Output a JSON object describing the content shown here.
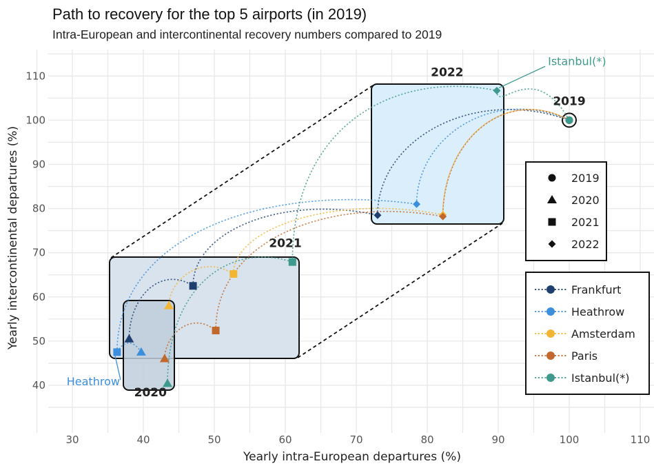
{
  "title": "Path to recovery for the top 5 airports (in 2019)",
  "subtitle": "Intra-European and intercontinental recovery numbers compared to 2019",
  "colors": {
    "Frankfurt": "#1f3f6e",
    "Heathrow": "#3c8fdc",
    "Amsterdam": "#f3b534",
    "Paris": "#c1692c",
    "Istanbul(*)": "#3e9a8c",
    "grid": "#e8e8e8",
    "box_2021_fill": "#d8e3ee",
    "box_2020_fill": "#bfcedb",
    "box_2022_fill": "#dbeefb"
  },
  "chart_data": {
    "type": "scatter",
    "xlabel": "Yearly intra-European departures (%)",
    "ylabel": "Yearly intercontinental departures (%)",
    "xlim": [
      27,
      112
    ],
    "ylim": [
      32,
      115
    ],
    "xticks": [
      30,
      40,
      50,
      60,
      70,
      80,
      90,
      100,
      110
    ],
    "yticks": [
      40,
      50,
      60,
      70,
      80,
      90,
      100,
      110
    ],
    "grid": true,
    "years": [
      "2019",
      "2020",
      "2021",
      "2022"
    ],
    "year_markers": {
      "2019": "circle",
      "2020": "triangle",
      "2021": "square",
      "2022": "diamond"
    },
    "series": [
      {
        "name": "Frankfurt",
        "points": {
          "2019": [
            100,
            100
          ],
          "2020": [
            38,
            50.5
          ],
          "2021": [
            47,
            62.5
          ],
          "2022": [
            73,
            78.5
          ]
        }
      },
      {
        "name": "Heathrow",
        "points": {
          "2019": [
            100,
            100
          ],
          "2020": [
            39.7,
            47.5
          ],
          "2021": [
            36.3,
            47.5
          ],
          "2022": [
            78.5,
            81
          ]
        }
      },
      {
        "name": "Amsterdam",
        "points": {
          "2019": [
            100,
            100
          ],
          "2020": [
            43.6,
            58
          ],
          "2021": [
            52.7,
            65.2
          ],
          "2022": [
            82.2,
            78.6
          ]
        }
      },
      {
        "name": "Paris",
        "points": {
          "2019": [
            100,
            100
          ],
          "2020": [
            43,
            46
          ],
          "2021": [
            50.2,
            52.4
          ],
          "2022": [
            82.2,
            78.2
          ]
        }
      },
      {
        "name": "Istanbul(*)",
        "points": {
          "2019": [
            100,
            100
          ],
          "2020": [
            43.4,
            40.4
          ],
          "2021": [
            61,
            67.9
          ],
          "2022": [
            89.8,
            106.7
          ]
        }
      }
    ],
    "region_labels": [
      {
        "text": "2019",
        "x": 100,
        "y": 103.4
      },
      {
        "text": "2020",
        "x": 41,
        "y": 37.5
      },
      {
        "text": "2021",
        "x": 60,
        "y": 71.3
      },
      {
        "text": "2022",
        "x": 82.8,
        "y": 110
      }
    ],
    "annotations": [
      {
        "text": "Heathrow",
        "series": "Heathrow",
        "x": 29.2,
        "y": 40
      },
      {
        "text": "Istanbul(*)",
        "series": "Istanbul(*)",
        "x": 97,
        "y": 112.5
      }
    ],
    "legend_shapes": {
      "position": "right",
      "entries": [
        "2019",
        "2020",
        "2021",
        "2022"
      ]
    },
    "legend_airports": {
      "position": "right",
      "entries": [
        "Frankfurt",
        "Heathrow",
        "Amsterdam",
        "Paris",
        "Istanbul(*)"
      ]
    }
  }
}
